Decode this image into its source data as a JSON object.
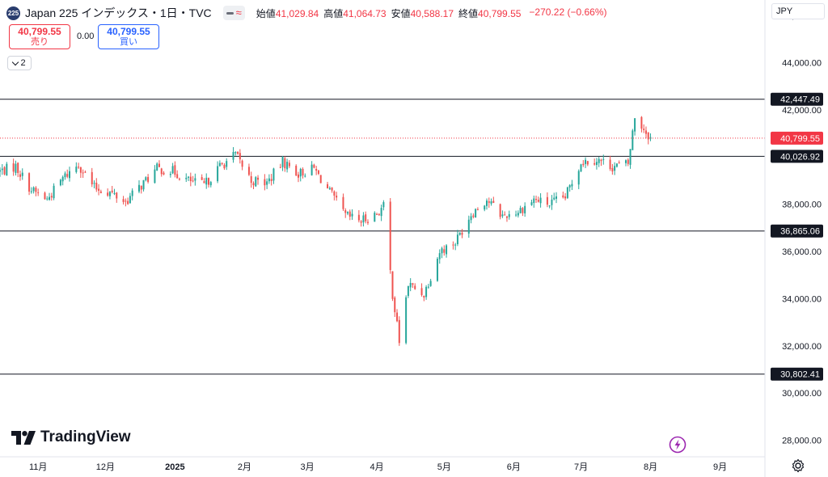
{
  "header": {
    "symbol_badge": "225",
    "title": "Japan 225 インデックス・1日・TVC",
    "ohlc": [
      {
        "label": "始値",
        "value": "41,029.84"
      },
      {
        "label": "高値",
        "value": "41,064.73"
      },
      {
        "label": "安値",
        "value": "40,588.17"
      },
      {
        "label": "終値",
        "value": "40,799.55"
      }
    ],
    "change": "−270.22 (−0.66%)"
  },
  "trade": {
    "sell_price": "40,799.55",
    "sell_label": "売り",
    "spread": "0.00",
    "buy_price": "40,799.55",
    "buy_label": "買い"
  },
  "indicators_toggle": {
    "count": "2"
  },
  "currency": "JPY",
  "logo": {
    "text": "TradingView"
  },
  "colors": {
    "up": "#26a69a",
    "down": "#ef5350",
    "line": "#131722",
    "price_dot": "#f23645"
  },
  "chart_data": {
    "type": "candlestick",
    "y_ticks": [
      {
        "value": 28000,
        "label": "28,000.00"
      },
      {
        "value": 30000,
        "label": "30,000.00"
      },
      {
        "value": 32000,
        "label": "32,000.00"
      },
      {
        "value": 34000,
        "label": "34,000.00"
      },
      {
        "value": 36000,
        "label": "36,000.00"
      },
      {
        "value": 38000,
        "label": "38,000.00"
      },
      {
        "value": 40000,
        "label": "40,000.00"
      },
      {
        "value": 42000,
        "label": "42,000.00"
      },
      {
        "value": 44000,
        "label": "44,000.00"
      },
      {
        "value": 46000,
        "label": "46,000.00"
      }
    ],
    "ylim": [
      27300,
      46650
    ],
    "x_ticks": [
      {
        "date": "2024-11-01",
        "label": "11月",
        "bold": false
      },
      {
        "date": "2024-12-01",
        "label": "12月",
        "bold": false
      },
      {
        "date": "2025-01-01",
        "label": "2025",
        "bold": true
      },
      {
        "date": "2025-02-01",
        "label": "2月",
        "bold": false
      },
      {
        "date": "2025-03-01",
        "label": "3月",
        "bold": false
      },
      {
        "date": "2025-04-01",
        "label": "4月",
        "bold": false
      },
      {
        "date": "2025-05-01",
        "label": "5月",
        "bold": false
      },
      {
        "date": "2025-06-01",
        "label": "6月",
        "bold": false
      },
      {
        "date": "2025-07-01",
        "label": "7月",
        "bold": false
      },
      {
        "date": "2025-08-01",
        "label": "8月",
        "bold": false
      },
      {
        "date": "2025-09-01",
        "label": "9月",
        "bold": false
      }
    ],
    "xlim": [
      "2024-10-15",
      "2025-09-21"
    ],
    "horizontal_lines": [
      {
        "value": 42447.49,
        "label": "42,447.49"
      },
      {
        "value": 40026.92,
        "label": "40,026.92"
      },
      {
        "value": 36865.06,
        "label": "36,865.06"
      },
      {
        "value": 30802.41,
        "label": "30,802.41"
      }
    ],
    "last_price": {
      "value": 40799.55,
      "label": "40,799.55"
    },
    "anchors": [
      [
        "2024-10-15",
        39400
      ],
      [
        "2024-10-22",
        39600
      ],
      [
        "2024-10-29",
        38600
      ],
      [
        "2024-11-05",
        38200
      ],
      [
        "2024-11-12",
        39100
      ],
      [
        "2024-11-19",
        39700
      ],
      [
        "2024-11-26",
        38700
      ],
      [
        "2024-12-03",
        38500
      ],
      [
        "2024-12-10",
        38100
      ],
      [
        "2024-12-17",
        38800
      ],
      [
        "2024-12-24",
        39500
      ],
      [
        "2024-12-31",
        39400
      ],
      [
        "2025-01-07",
        39000
      ],
      [
        "2025-01-14",
        38800
      ],
      [
        "2025-01-21",
        39600
      ],
      [
        "2025-01-28",
        40100
      ],
      [
        "2025-02-04",
        39000
      ],
      [
        "2025-02-11",
        38900
      ],
      [
        "2025-02-18",
        39800
      ],
      [
        "2025-02-25",
        39300
      ],
      [
        "2025-03-04",
        39500
      ],
      [
        "2025-03-11",
        38500
      ],
      [
        "2025-03-18",
        37500
      ],
      [
        "2025-03-25",
        37300
      ],
      [
        "2025-04-01",
        37600
      ],
      [
        "2025-04-04",
        37900
      ],
      [
        "2025-04-08",
        34200
      ],
      [
        "2025-04-11",
        32200
      ],
      [
        "2025-04-15",
        34600
      ],
      [
        "2025-04-22",
        34200
      ],
      [
        "2025-04-29",
        36000
      ],
      [
        "2025-05-06",
        36400
      ],
      [
        "2025-05-13",
        37600
      ],
      [
        "2025-05-20",
        38200
      ],
      [
        "2025-05-27",
        37500
      ],
      [
        "2025-06-03",
        37700
      ],
      [
        "2025-06-10",
        38200
      ],
      [
        "2025-06-17",
        38000
      ],
      [
        "2025-06-24",
        38300
      ],
      [
        "2025-07-01",
        39800
      ],
      [
        "2025-07-08",
        39900
      ],
      [
        "2025-07-15",
        39600
      ],
      [
        "2025-07-22",
        39700
      ],
      [
        "2025-07-25",
        41700
      ],
      [
        "2025-07-29",
        41200
      ],
      [
        "2025-08-01",
        40800
      ]
    ]
  }
}
